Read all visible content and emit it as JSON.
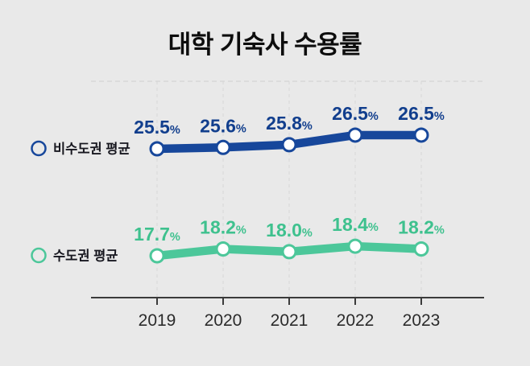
{
  "background_color": "#e9e9e9",
  "chart_data": {
    "type": "line",
    "title": "대학 기숙사 수용률",
    "categories": [
      "2019",
      "2020",
      "2021",
      "2022",
      "2023"
    ],
    "series": [
      {
        "name": "비수도권 평균",
        "values": [
          25.5,
          25.6,
          25.8,
          26.5,
          26.5
        ],
        "color": "#17479B",
        "label_color": "#113E8D"
      },
      {
        "name": "수도권 평균",
        "values": [
          17.7,
          18.2,
          18.0,
          18.4,
          18.2
        ],
        "color": "#4CC79A",
        "label_color": "#3EC18E"
      }
    ],
    "value_suffix": "%",
    "value_decimals": 1,
    "xlabel": "",
    "ylabel": "",
    "grid": "vertical-dashed",
    "grid_color": "#d7d7d7",
    "axis_color": "#3b3b3b",
    "tick_label_color": "#2b2b2b",
    "legend_position": "left",
    "legend_text_color": "#17171f",
    "marker": "open-circle"
  }
}
